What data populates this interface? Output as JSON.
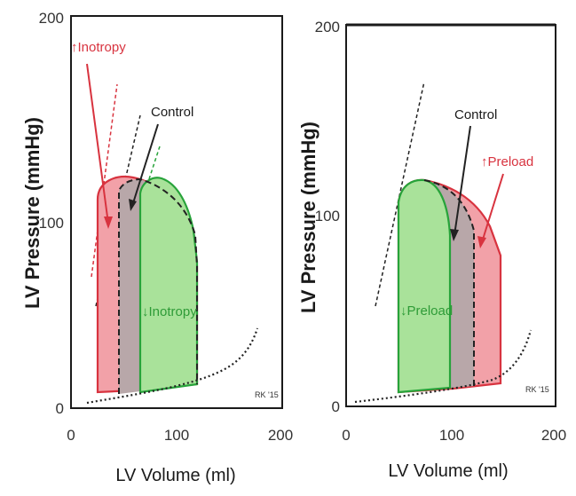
{
  "colors": {
    "axis": "#1a1a1a",
    "red_fill": "#f2a1a8",
    "red_stroke": "#d8333f",
    "green_fill": "#a9e29a",
    "green_stroke": "#27a33a",
    "gray_fill": "#b8a7a9",
    "dashed": "#222222",
    "red_text": "#d8333f",
    "green_text": "#2e9b37"
  },
  "panels": [
    {
      "id": "inotropy",
      "ylabel": "LV Pressure (mmHg)",
      "xlabel": "LV Volume (ml)",
      "xticks": [
        "0",
        "100",
        "200"
      ],
      "yticks": [
        "0",
        "100",
        "200"
      ],
      "labels": {
        "red": "↑Inotropy",
        "control": "Control",
        "green": "↓Inotropy",
        "credit": "RK '15"
      }
    },
    {
      "id": "preload",
      "ylabel": "LV Pressure (mmHg)",
      "xlabel": "LV Volume (ml)",
      "xticks": [
        "0",
        "100",
        "200"
      ],
      "yticks": [
        "0",
        "100",
        "200"
      ],
      "labels": {
        "red": "↑Preload",
        "control": "Control",
        "green": "↓Preload",
        "credit": "RK '15"
      }
    }
  ]
}
